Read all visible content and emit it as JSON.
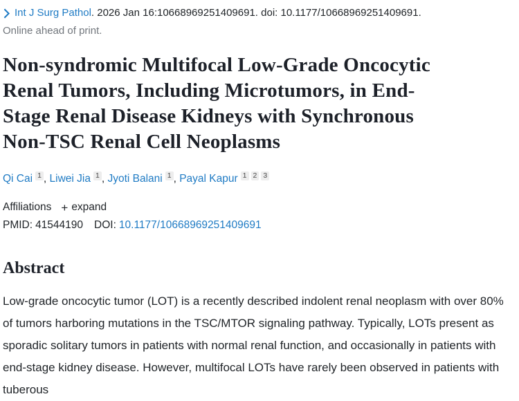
{
  "masthead": {
    "journal": "Int J Surg Pathol",
    "citation": ". 2026 Jan 16:10668969251409691. doi: 10.1177/10668969251409691.",
    "ahead_of_print": "Online ahead of print."
  },
  "title": "Non-syndromic Multifocal Low-Grade Oncocytic Renal Tumors, Including Microtumors, in End-Stage Renal Disease Kidneys with Synchronous Non-TSC Renal Cell Neoplasms",
  "authors": [
    {
      "name": "Qi Cai",
      "sups": [
        "1"
      ]
    },
    {
      "name": "Liwei Jia",
      "sups": [
        "1"
      ]
    },
    {
      "name": "Jyoti Balani",
      "sups": [
        "1"
      ]
    },
    {
      "name": "Payal Kapur",
      "sups": [
        "1",
        "2",
        "3"
      ]
    }
  ],
  "author_separator": ", ",
  "affiliations": {
    "label": "Affiliations",
    "plus_glyph": "+",
    "expand_label": "expand"
  },
  "identifiers": {
    "pmid_label": "PMID:",
    "pmid": "41544190",
    "doi_label": "DOI:",
    "doi": "10.1177/10668969251409691"
  },
  "abstract": {
    "heading": "Abstract",
    "text": "Low-grade oncocytic tumor (LOT) is a recently described indolent renal neoplasm with over 80% of tumors harboring mutations in the TSC/MTOR signaling pathway. Typically, LOTs present as sporadic solitary tumors in patients with normal renal function, and occasionally in patients with end-stage kidney disease. However, multifocal LOTs have rarely been observed in patients with tuberous"
  },
  "colors": {
    "link_blue": "#1f7bc4",
    "body_text": "#212529",
    "muted_gray": "#71767c",
    "sup_badge_bg": "#ededed"
  }
}
